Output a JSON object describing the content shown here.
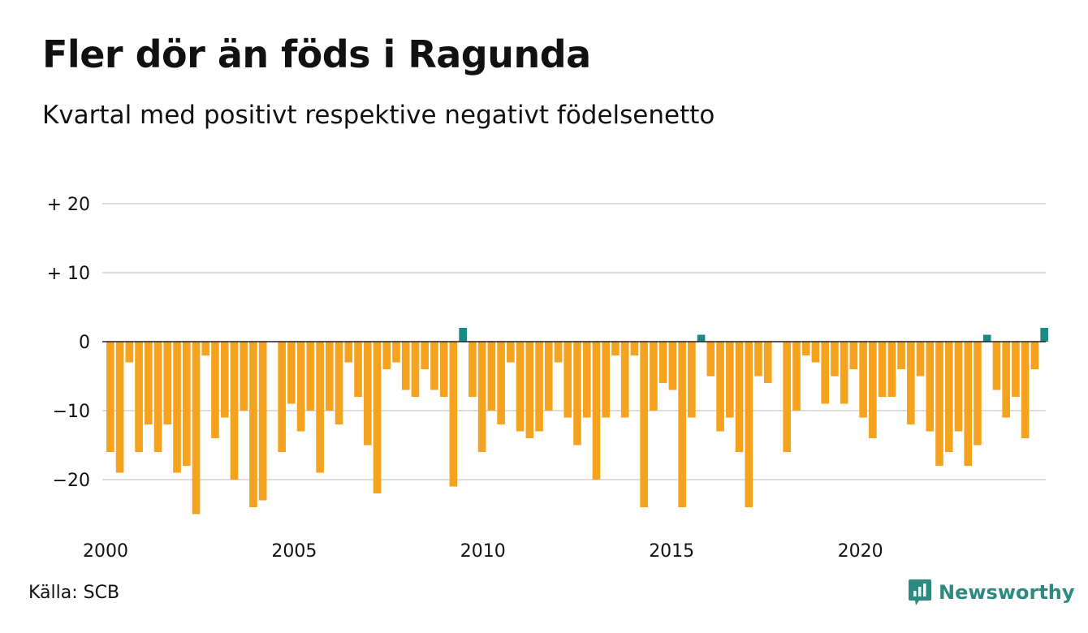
{
  "header": {
    "title": "Fler dör än föds i Ragunda",
    "subtitle": "Kvartal med positivt respektive negativt födelsenetto"
  },
  "footer": {
    "source": "Källa: SCB",
    "brand": "Newsworthy"
  },
  "colors": {
    "negative": "#f5a21e",
    "positive": "#1a8a84",
    "grid": "#dddddd",
    "zero_line": "#222222",
    "brand": "#2c8a80"
  },
  "chart_data": {
    "type": "bar",
    "title": "Fler dör än föds i Ragunda",
    "subtitle": "Kvartal med positivt respektive negativt födelsenetto",
    "x_start": 2000,
    "x_end": 2025,
    "x_ticks": [
      2000,
      2005,
      2010,
      2015,
      2020
    ],
    "ylim": [
      -26,
      22
    ],
    "y_ticks": [
      {
        "value": 20,
        "label": "+ 20"
      },
      {
        "value": 10,
        "label": "+ 10"
      },
      {
        "value": 0,
        "label": "0"
      },
      {
        "value": -10,
        "label": "−10"
      },
      {
        "value": -20,
        "label": "−20"
      }
    ],
    "grid": true,
    "series": [
      {
        "values": [
          -16,
          -19,
          -3,
          -16,
          -12,
          -16,
          -12,
          -19,
          -18,
          -25,
          -2,
          -14,
          -11,
          -20,
          -10,
          -24,
          -23,
          0,
          -16,
          -9,
          -13,
          -10,
          -19,
          -10,
          -12,
          -3,
          -8,
          -15,
          -22,
          -4,
          -3,
          -7,
          -8,
          -4,
          -7,
          -8,
          -21,
          2,
          -8,
          -16,
          -10,
          -12,
          -3,
          -13,
          -14,
          -13,
          -10,
          -3,
          -11,
          -15,
          -11,
          -20,
          -11,
          -2,
          -11,
          -2,
          -24,
          -10,
          -6,
          -7,
          -24,
          -11,
          1,
          -5,
          -13,
          -11,
          -16,
          -24,
          -5,
          -6,
          0,
          -16,
          -10,
          -2,
          -3,
          -9,
          -5,
          -9,
          -4,
          -11,
          -14,
          -8,
          -8,
          -4,
          -12,
          -5,
          -13,
          -18,
          -16,
          -13,
          -18,
          -15,
          1,
          -7,
          -11,
          -8,
          -14,
          -4,
          2
        ]
      }
    ]
  }
}
